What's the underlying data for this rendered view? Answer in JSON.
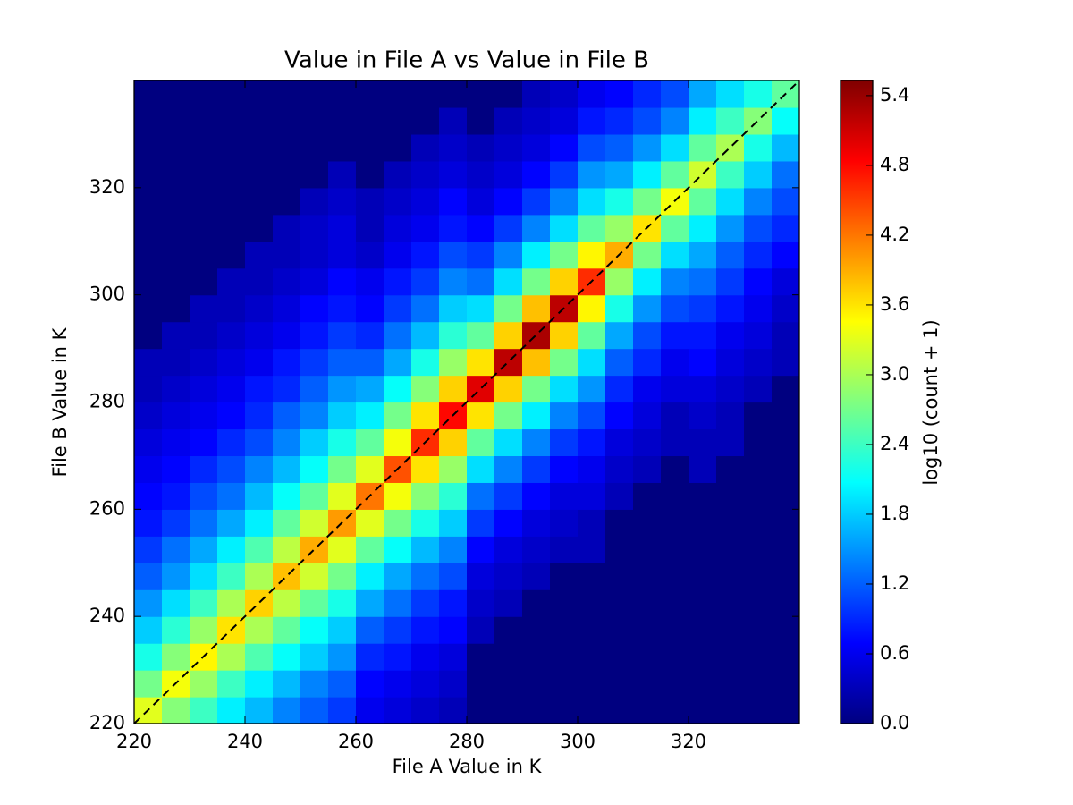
{
  "chart_data": {
    "type": "hexbin",
    "title": "Value in File A vs Value in File B",
    "x_label": "File A Value in K",
    "y_label": "File B Value in K",
    "colorbar_label": "log10 (count + 1)",
    "xlim": [
      220,
      340
    ],
    "ylim": [
      220,
      340
    ],
    "xticks": [
      220,
      240,
      260,
      280,
      300,
      320
    ],
    "yticks": [
      220,
      240,
      260,
      280,
      300,
      320
    ],
    "x_bins": [
      220,
      225,
      230,
      235,
      240,
      245,
      250,
      255,
      260,
      265,
      270,
      275,
      280,
      285,
      290,
      295,
      300,
      305,
      310,
      315,
      320,
      325,
      330,
      335,
      340
    ],
    "y_bins": [
      220,
      225,
      230,
      235,
      240,
      245,
      250,
      255,
      260,
      265,
      270,
      275,
      280,
      285,
      290,
      295,
      300,
      305,
      310,
      315,
      320,
      325,
      330,
      335,
      340
    ],
    "values": [
      [
        3.3,
        2.7,
        2.2,
        1.8,
        1.5,
        1.2,
        1.0,
        0.8,
        0.7,
        0.6,
        0.5,
        0.4,
        0.3,
        0.3,
        0,
        0,
        0,
        0,
        0,
        0,
        0,
        0,
        0,
        0
      ],
      [
        2.8,
        3.4,
        2.8,
        2.3,
        1.9,
        1.5,
        1.3,
        1.0,
        0.8,
        0.7,
        0.6,
        0.5,
        0.4,
        0.3,
        0.3,
        0,
        0,
        0,
        0,
        0,
        0,
        0,
        0,
        0
      ],
      [
        2.4,
        2.9,
        3.5,
        2.9,
        2.4,
        1.9,
        1.6,
        1.3,
        1.1,
        0.9,
        0.7,
        0.6,
        0.5,
        0.4,
        0.3,
        0.3,
        0,
        0,
        0,
        0,
        0,
        0,
        0,
        0
      ],
      [
        2.0,
        2.4,
        3.0,
        3.6,
        3.0,
        2.4,
        2.0,
        1.6,
        1.3,
        1.1,
        0.9,
        0.7,
        0.6,
        0.5,
        0.4,
        0.3,
        0.3,
        0,
        0,
        0,
        0,
        0,
        0,
        0
      ],
      [
        1.7,
        2.0,
        2.5,
        3.0,
        3.7,
        3.0,
        2.5,
        2.0,
        1.7,
        1.4,
        1.1,
        0.9,
        0.8,
        0.6,
        0.5,
        0.4,
        0.3,
        0.3,
        0,
        0,
        0,
        0,
        0,
        0
      ],
      [
        1.4,
        1.7,
        2.1,
        2.6,
        3.1,
        3.8,
        3.1,
        2.6,
        2.1,
        1.7,
        1.4,
        1.2,
        0.9,
        0.8,
        0.6,
        0.5,
        0.4,
        0.3,
        0.3,
        0,
        0,
        0,
        0,
        0
      ],
      [
        1.2,
        1.4,
        1.8,
        2.1,
        2.6,
        3.2,
        3.9,
        3.2,
        2.6,
        2.1,
        1.8,
        1.4,
        1.2,
        1.0,
        0.8,
        0.7,
        0.5,
        0.4,
        0.4,
        0.3,
        0,
        0,
        0,
        0
      ],
      [
        1.0,
        1.2,
        1.5,
        1.8,
        2.2,
        2.7,
        3.3,
        4.0,
        3.3,
        2.7,
        2.2,
        1.8,
        1.5,
        1.2,
        1.0,
        0.8,
        0.7,
        0.5,
        0.5,
        0.4,
        0.3,
        0,
        0,
        0
      ],
      [
        0.6,
        0.7,
        0.9,
        1.2,
        1.6,
        2.0,
        2.6,
        3.3,
        4.2,
        3.3,
        2.6,
        2.0,
        1.6,
        1.2,
        0.9,
        0.7,
        0.6,
        0.4,
        0.3,
        0.3,
        0,
        0,
        0,
        0
      ],
      [
        0.5,
        0.6,
        0.8,
        1.0,
        1.3,
        1.6,
        2.1,
        2.7,
        3.4,
        4.4,
        3.4,
        2.7,
        2.1,
        1.6,
        1.3,
        1.0,
        0.8,
        0.6,
        0.5,
        0.4,
        0.3,
        0,
        0,
        0
      ],
      [
        0.4,
        0.5,
        0.6,
        0.8,
        1.0,
        1.3,
        1.7,
        2.2,
        2.8,
        3.6,
        4.6,
        3.6,
        2.8,
        2.2,
        1.7,
        1.3,
        1.0,
        0.8,
        0.6,
        0.5,
        0.4,
        0.3,
        0,
        0
      ],
      [
        0.3,
        0.4,
        0.5,
        0.7,
        0.8,
        1.1,
        1.4,
        1.8,
        2.3,
        2.9,
        3.7,
        4.8,
        3.7,
        2.9,
        2.3,
        1.8,
        1.4,
        1.1,
        0.8,
        0.7,
        0.5,
        0.4,
        0.3,
        0
      ],
      [
        0,
        0,
        0,
        0.3,
        0.4,
        0.5,
        0.7,
        1.0,
        1.3,
        1.9,
        2.6,
        3.6,
        5.0,
        3.6,
        2.6,
        1.9,
        1.3,
        1.0,
        0.7,
        0.5,
        0.4,
        0.3,
        0,
        0
      ],
      [
        0,
        0,
        0,
        0,
        0.3,
        0.4,
        0.5,
        0.7,
        1.0,
        1.4,
        1.9,
        2.7,
        3.7,
        5.2,
        3.7,
        2.7,
        1.9,
        1.4,
        1.0,
        0.7,
        0.5,
        0.4,
        0.3,
        0
      ],
      [
        0,
        0,
        0,
        0,
        0,
        0.3,
        0.4,
        0.5,
        0.7,
        1.0,
        1.4,
        2.0,
        2.7,
        3.8,
        5.3,
        3.8,
        2.7,
        2.0,
        1.4,
        1.0,
        0.7,
        0.5,
        0.4,
        0.3
      ],
      [
        0,
        0,
        0,
        0,
        0,
        0,
        0.3,
        0.4,
        0.5,
        0.7,
        1.0,
        1.4,
        1.9,
        2.7,
        3.7,
        5.2,
        3.7,
        2.7,
        1.9,
        1.4,
        1.0,
        0.7,
        0.5,
        0.4
      ],
      [
        0,
        0,
        0,
        0,
        0,
        0,
        0.3,
        0.3,
        0.5,
        0.6,
        0.8,
        1.1,
        1.5,
        1.9,
        2.6,
        3.5,
        4.6,
        3.5,
        2.6,
        1.9,
        1.5,
        1.1,
        0.8,
        0.6
      ],
      [
        0,
        0,
        0,
        0,
        0,
        0,
        0,
        0,
        0.3,
        0.4,
        0.5,
        0.7,
        0.9,
        1.2,
        1.6,
        2.2,
        2.9,
        3.9,
        2.9,
        2.2,
        1.6,
        1.2,
        0.9,
        0.7
      ],
      [
        0,
        0,
        0,
        0,
        0,
        0,
        0,
        0,
        0,
        0.3,
        0.4,
        0.5,
        0.6,
        0.9,
        1.1,
        1.5,
        2.0,
        2.7,
        3.6,
        2.7,
        2.0,
        1.5,
        1.1,
        0.9
      ],
      [
        0,
        0,
        0,
        0,
        0,
        0,
        0,
        0,
        0,
        0,
        0.3,
        0.3,
        0.5,
        0.6,
        0.8,
        1.1,
        1.4,
        1.9,
        2.6,
        3.4,
        2.6,
        1.9,
        1.4,
        1.1
      ],
      [
        0,
        0,
        0,
        0,
        0,
        0,
        0,
        0,
        0,
        0.3,
        0.3,
        0.4,
        0.5,
        0.7,
        0.8,
        1.0,
        1.3,
        1.6,
        2.0,
        2.6,
        3.2,
        2.6,
        2.0,
        1.6
      ],
      [
        0,
        0,
        0,
        0,
        0,
        0,
        0,
        0,
        0,
        0,
        0.3,
        0.3,
        0.4,
        0.5,
        0.6,
        0.8,
        1.0,
        1.2,
        1.5,
        1.9,
        2.4,
        3.0,
        2.4,
        1.9
      ],
      [
        0,
        0,
        0,
        0,
        0,
        0,
        0,
        0,
        0,
        0,
        0,
        0,
        0.3,
        0.4,
        0.5,
        0.6,
        0.7,
        0.9,
        1.1,
        1.4,
        1.8,
        2.2,
        2.8,
        2.2
      ],
      [
        0,
        0,
        0,
        0,
        0,
        0,
        0,
        0,
        0,
        0,
        0,
        0,
        0,
        0.3,
        0.3,
        0.4,
        0.5,
        0.7,
        0.9,
        1.1,
        1.3,
        1.7,
        2.1,
        2.6
      ]
    ],
    "colormap": "jet",
    "clim": [
      0,
      5.53
    ],
    "cticks": [
      {
        "value": 0,
        "label": "0.0"
      },
      0.6,
      1.2,
      1.8,
      2.4,
      {
        "value": 3,
        "label": "3.0"
      },
      3.6,
      4.2,
      4.8,
      5.4
    ],
    "identity_line": true
  }
}
